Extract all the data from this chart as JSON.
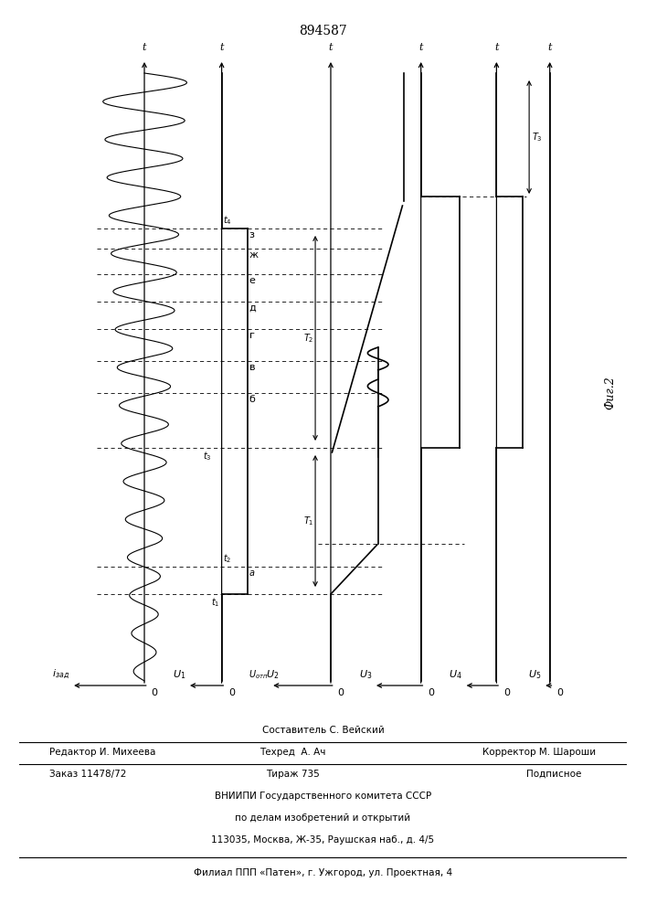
{
  "title": "894587",
  "fig_label": "Фиг.2",
  "background": "#ffffff",
  "footer": {
    "sostavitel": "Составитель С. Вейский",
    "redaktor": "Редактор И. Михеева",
    "tehred": "Техред  А. Ач",
    "korrektor": "Корректор М. Шароши",
    "zakaz": "Заказ 11478/72",
    "tiraж": "Тираж 735",
    "podpisnoe": "Подписное",
    "vniip1": "ВНИИПИ Государственного комитета СССР",
    "vniip2": "по делам изобретений и открытий",
    "addr": "113035, Москва, Ж-35, Раушская наб., д. 4/5",
    "filial": "Филиал ППП «Патен», г. Ужгород, ул. Проектная, 4"
  }
}
